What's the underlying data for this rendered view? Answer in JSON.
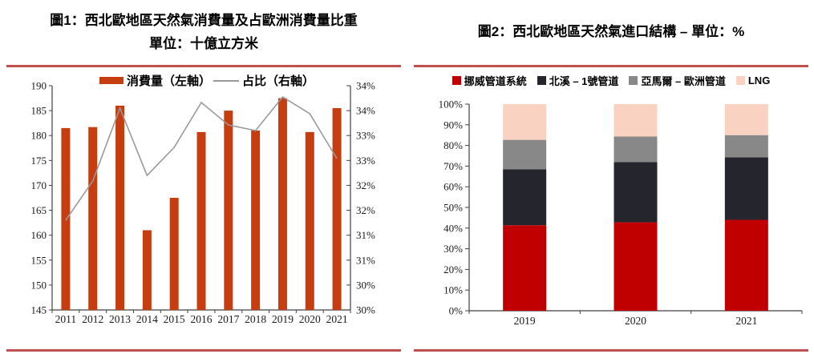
{
  "page": {
    "background": "#ffffff",
    "rule_color": "#C0504D"
  },
  "figure1": {
    "title": "圖1：西北歐地區天然氣消費量及占歐洲消費量比重",
    "subtitle": "單位：十億立方米",
    "legend": [
      {
        "label": "消費量（左軸）",
        "swatch": "bar",
        "color": "#C63D10"
      },
      {
        "label": "占比（右軸）",
        "swatch": "line",
        "color": "#999999"
      }
    ],
    "chart_data": {
      "type": "bar+line",
      "categories": [
        "2011",
        "2012",
        "2013",
        "2014",
        "2015",
        "2016",
        "2017",
        "2018",
        "2019",
        "2020",
        "2021"
      ],
      "series": [
        {
          "name": "消費量（左軸）",
          "type": "bar",
          "axis": "left",
          "color": "#C63D10",
          "values": [
            181.5,
            181.7,
            186.0,
            161.0,
            167.5,
            180.7,
            185.0,
            181.0,
            187.5,
            180.7,
            185.5
          ]
        },
        {
          "name": "占比（右軸）",
          "type": "line",
          "axis": "right",
          "color": "#999999",
          "values": [
            31.6,
            32.3,
            33.6,
            32.4,
            32.9,
            33.7,
            33.3,
            33.2,
            33.8,
            33.5,
            32.7
          ]
        }
      ],
      "left_axis": {
        "min": 145,
        "max": 190,
        "step": 5,
        "labels": [
          "190",
          "185",
          "180",
          "175",
          "170",
          "165",
          "160",
          "155",
          "150",
          "145"
        ]
      },
      "right_axis": {
        "min": 30,
        "max": 34,
        "labels": [
          "34%",
          "34%",
          "33%",
          "33%",
          "32%",
          "32%",
          "31%",
          "31%",
          "30%",
          "30%"
        ]
      },
      "grid": false,
      "legend_position": "top"
    }
  },
  "figure2": {
    "title": "圖2：西北歐地區天然氣進口結構 – 單位：%",
    "legend": [
      {
        "label": "挪威管道系統",
        "swatch": "square",
        "color": "#C00000"
      },
      {
        "label": "北溪 – 1號管道",
        "swatch": "square",
        "color": "#25252D"
      },
      {
        "label": "亞馬爾 – 歐洲管道",
        "swatch": "square",
        "color": "#888888"
      },
      {
        "label": "LNG",
        "swatch": "square",
        "color": "#FAD2C2"
      }
    ],
    "chart_data": {
      "type": "stacked-bar",
      "categories": [
        "2019",
        "2020",
        "2021"
      ],
      "series": [
        {
          "name": "挪威管道系統",
          "color": "#C00000",
          "values": [
            41.4,
            42.8,
            44.0
          ]
        },
        {
          "name": "北溪 – 1號管道",
          "color": "#25252D",
          "values": [
            27.1,
            29.2,
            30.3
          ]
        },
        {
          "name": "亞馬爾 – 歐洲管道",
          "color": "#888888",
          "values": [
            14.2,
            12.3,
            10.7
          ]
        },
        {
          "name": "LNG",
          "color": "#FAD2C2",
          "values": [
            17.3,
            15.7,
            15.0
          ]
        }
      ],
      "y_axis": {
        "min": 0,
        "max": 100,
        "step": 10,
        "labels": [
          "100%",
          "90%",
          "80%",
          "70%",
          "60%",
          "50%",
          "40%",
          "30%",
          "20%",
          "10%",
          "0%"
        ]
      },
      "grid": false,
      "legend_position": "top"
    }
  }
}
